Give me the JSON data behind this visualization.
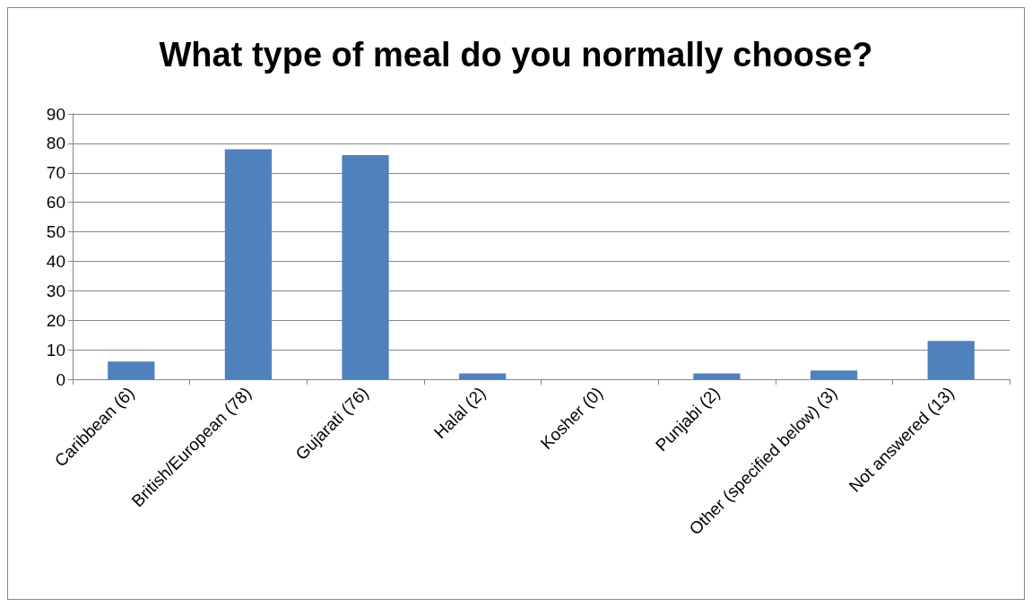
{
  "chart_data": {
    "type": "bar",
    "title": "What type of meal do you normally choose?",
    "categories": [
      "Caribbean (6)",
      "British/European (78)",
      "Gujarati (76)",
      "Halal (2)",
      "Kosher (0)",
      "Punjabi (2)",
      "Other (specified below) (3)",
      "Not answered (13)"
    ],
    "values": [
      6,
      78,
      76,
      2,
      0,
      2,
      3,
      13
    ],
    "color": "#4f81bd",
    "ylim": [
      0,
      90
    ],
    "yticks": [
      0,
      10,
      20,
      30,
      40,
      50,
      60,
      70,
      80,
      90
    ],
    "grid": "y"
  }
}
